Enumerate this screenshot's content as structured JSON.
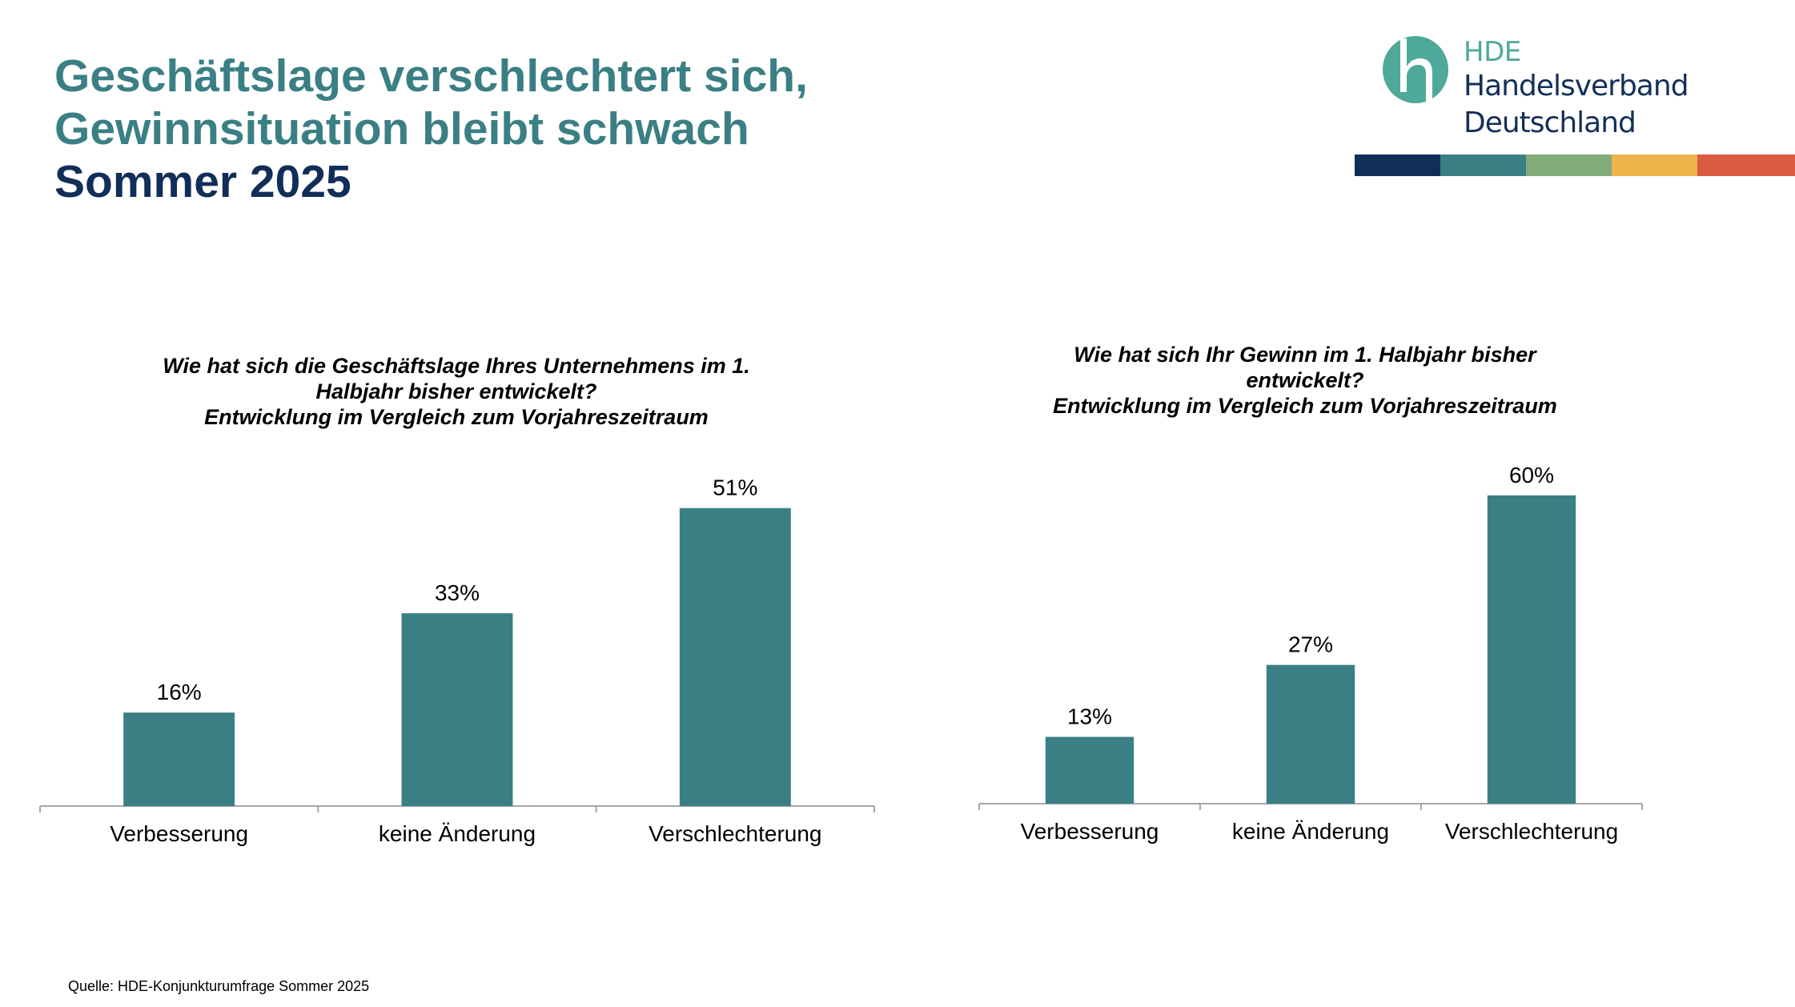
{
  "header": {
    "title_line1": "Geschäftslage verschlechtert sich,",
    "title_line2": "Gewinnsituation bleibt schwach",
    "title_line3": "Sommer 2025"
  },
  "logo": {
    "icon": "hde-h-logo-icon",
    "abbr": "HDE",
    "name_line1": "Handelsverband",
    "name_line2": "Deutschland",
    "colorbar": [
      "#112e59",
      "#3a7f84",
      "#82ad7b",
      "#eeb44b",
      "#d95c41"
    ]
  },
  "colors": {
    "bar": "#3a7f84",
    "title_accent": "#3a7f84",
    "title_dark": "#112e59",
    "axis": "#a6a6a6"
  },
  "chart_data": [
    {
      "type": "bar",
      "title_lines": [
        "Wie hat sich die Geschäftslage Ihres Unternehmens im 1.",
        "Halbjahr bisher entwickelt?",
        "Entwicklung im Vergleich zum Vorjahreszeitraum"
      ],
      "categories": [
        "Verbesserung",
        "keine Änderung",
        "Verschlechterung"
      ],
      "values": [
        16,
        33,
        51
      ],
      "value_labels": [
        "16%",
        "33%",
        "51%"
      ],
      "unit": "%",
      "xlabel": "",
      "ylabel": "",
      "ylim": [
        0,
        55
      ],
      "grid": false,
      "legend": "none"
    },
    {
      "type": "bar",
      "title_lines": [
        "Wie hat sich Ihr Gewinn im 1. Halbjahr bisher",
        "entwickelt?",
        "Entwicklung im Vergleich zum Vorjahreszeitraum"
      ],
      "categories": [
        "Verbesserung",
        "keine Änderung",
        "Verschlechterung"
      ],
      "values": [
        13,
        27,
        60
      ],
      "value_labels": [
        "13%",
        "27%",
        "60%"
      ],
      "unit": "%",
      "xlabel": "",
      "ylabel": "",
      "ylim": [
        0,
        62
      ],
      "grid": false,
      "legend": "none"
    }
  ],
  "footer": {
    "source": "Quelle: HDE-Konjunkturumfrage Sommer 2025"
  }
}
